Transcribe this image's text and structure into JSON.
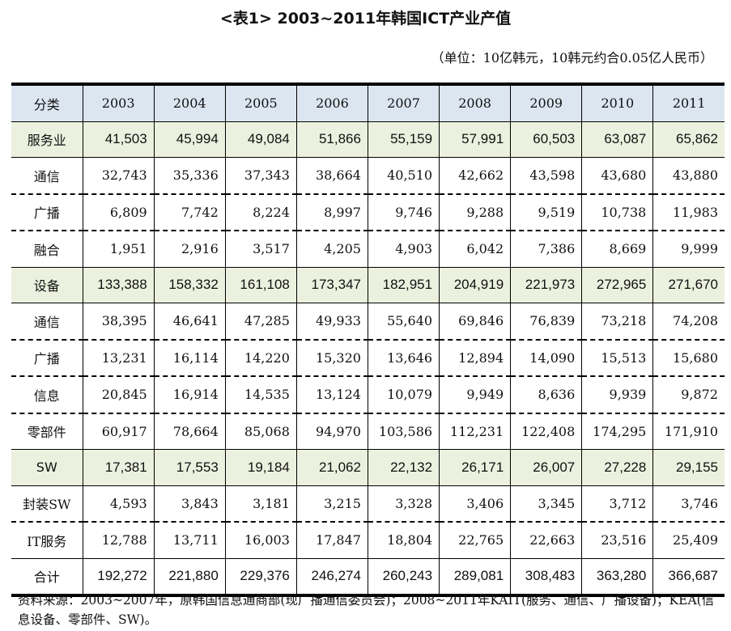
{
  "title": "<表1> 2003~2011年韩国ICT产业产值",
  "unit": "（单位：10亿韩元，10韩元约合0.05亿人民币）",
  "header": [
    "分类",
    "2003",
    "2004",
    "2005",
    "2006",
    "2007",
    "2008",
    "2009",
    "2010",
    "2011"
  ],
  "rows": [
    {
      "label": "服务业",
      "type": "hl",
      "values": [
        "41,503",
        "45,994",
        "49,084",
        "51,866",
        "55,159",
        "57,991",
        "60,503",
        "63,087",
        "65,862"
      ]
    },
    {
      "label": "通信",
      "type": "sub",
      "values": [
        "32,743",
        "35,336",
        "37,343",
        "38,664",
        "40,510",
        "42,662",
        "43,598",
        "43,680",
        "43,880"
      ]
    },
    {
      "label": "广播",
      "type": "sub",
      "values": [
        "6,809",
        "7,742",
        "8,224",
        "8,997",
        "9,746",
        "9,288",
        "9,519",
        "10,738",
        "11,983"
      ]
    },
    {
      "label": "融合",
      "type": "sub last",
      "values": [
        "1,951",
        "2,916",
        "3,517",
        "4,205",
        "4,903",
        "6,042",
        "7,386",
        "8,669",
        "9,999"
      ]
    },
    {
      "label": "设备",
      "type": "hl",
      "values": [
        "133,388",
        "158,332",
        "161,108",
        "173,347",
        "182,951",
        "204,919",
        "221,973",
        "272,965",
        "271,670"
      ]
    },
    {
      "label": "通信",
      "type": "sub",
      "values": [
        "38,395",
        "46,641",
        "47,285",
        "49,933",
        "55,640",
        "69,846",
        "76,839",
        "73,218",
        "74,208"
      ]
    },
    {
      "label": "广播",
      "type": "sub",
      "values": [
        "13,231",
        "16,114",
        "14,220",
        "15,320",
        "13,646",
        "12,894",
        "14,090",
        "15,513",
        "15,680"
      ]
    },
    {
      "label": "信息",
      "type": "sub",
      "values": [
        "20,845",
        "16,914",
        "14,535",
        "13,124",
        "10,079",
        "9,949",
        "8,636",
        "9,939",
        "9,872"
      ]
    },
    {
      "label": "零部件",
      "type": "sub last",
      "values": [
        "60,917",
        "78,664",
        "85,068",
        "94,970",
        "103,586",
        "112,231",
        "122,408",
        "174,295",
        "171,910"
      ]
    },
    {
      "label": "SW",
      "type": "hl",
      "values": [
        "17,381",
        "17,553",
        "19,184",
        "21,062",
        "22,132",
        "26,171",
        "26,007",
        "27,228",
        "29,155"
      ]
    },
    {
      "label": "封装SW",
      "type": "sub",
      "values": [
        "4,593",
        "3,843",
        "3,181",
        "3,215",
        "3,328",
        "3,406",
        "3,345",
        "3,712",
        "3,746"
      ]
    },
    {
      "label": "IT服务",
      "type": "sub last",
      "values": [
        "12,788",
        "13,711",
        "16,003",
        "17,847",
        "18,804",
        "22,765",
        "22,663",
        "23,516",
        "25,409"
      ]
    },
    {
      "label": "合计",
      "type": "total",
      "values": [
        "192,272",
        "221,880",
        "229,376",
        "246,274",
        "260,243",
        "289,081",
        "308,483",
        "363,280",
        "366,687"
      ]
    }
  ],
  "source": "资料来源：2003~2007年，原韩国信息通商部(现广播通信委员会)；2008~2011年KAIT(服务、通信、广播设备)；KEA(信息设备、零部件、SW)。"
}
